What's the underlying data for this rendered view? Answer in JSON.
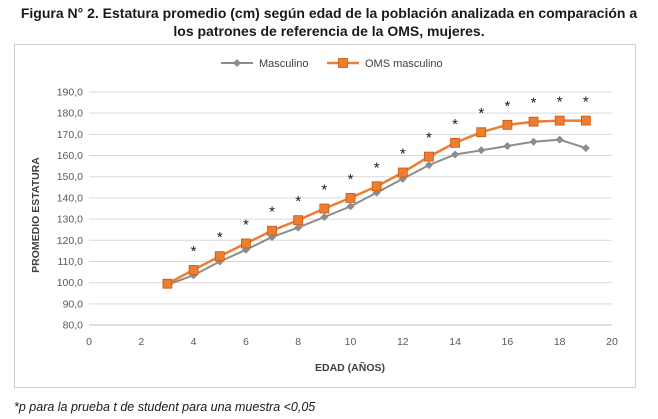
{
  "figure": {
    "title_line1": "Figura N° 2. Estatura promedio (cm) según edad de la población analizada en comparación a",
    "title_line2": "los patrones de referencia de la OMS, mujeres.",
    "footnote": "*p para la prueba t de student para una muestra <0,05"
  },
  "chart_data": {
    "type": "line",
    "xlabel": "EDAD (AÑOS)",
    "ylabel": "PROMEDIO ESTATURA",
    "xlim": [
      0,
      20
    ],
    "ylim": [
      80,
      190
    ],
    "x_ticks": [
      "0",
      "2",
      "4",
      "6",
      "8",
      "10",
      "12",
      "14",
      "16",
      "18",
      "20"
    ],
    "y_ticks": [
      "80,0",
      "90,0",
      "100,0",
      "110,0",
      "120,0",
      "130,0",
      "140,0",
      "150,0",
      "160,0",
      "170,0",
      "180,0",
      "190,0"
    ],
    "grid": "horizontal",
    "legend_position": "top",
    "x": [
      3,
      4,
      5,
      6,
      7,
      8,
      9,
      10,
      11,
      12,
      13,
      14,
      15,
      16,
      17,
      18,
      19
    ],
    "series": [
      {
        "name": "Masculino",
        "color": "#8c8c8c",
        "marker": "diamond",
        "values": [
          99,
          103.5,
          110,
          115.5,
          121.5,
          126,
          131,
          136,
          142.5,
          149,
          155.5,
          160.5,
          162.5,
          164.5,
          166.5,
          167.5,
          163.5
        ]
      },
      {
        "name": "OMS masculino",
        "color": "#ed7d31",
        "marker": "square",
        "values": [
          99.5,
          106,
          112.5,
          118.5,
          124.5,
          129.5,
          135,
          140,
          145.5,
          152,
          159.5,
          166,
          171,
          174.5,
          176,
          176.5,
          176.5
        ]
      }
    ],
    "annotations": {
      "symbol": "*",
      "x": [
        4,
        5,
        6,
        7,
        8,
        9,
        10,
        11,
        12,
        13,
        14,
        15,
        16,
        17,
        18,
        19
      ]
    },
    "colors": {
      "grid": "#d9d9d9",
      "axis_text": "#595959"
    }
  }
}
